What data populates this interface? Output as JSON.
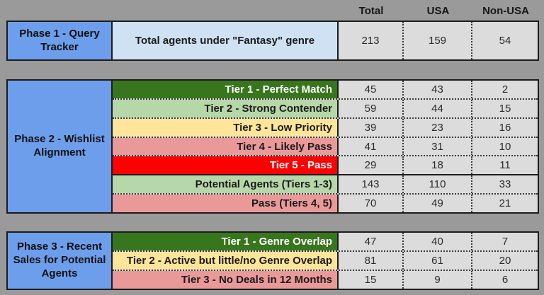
{
  "header": {
    "columns": {
      "total": "Total",
      "usa": "USA",
      "non_usa": "Non-USA"
    }
  },
  "colors": {
    "background": "#9a9a9a",
    "phase_label_blue": "#6d9eeb",
    "light_blue": "#cfe2f3",
    "dark_green": "#38761d",
    "light_green": "#b6d7a8",
    "yellow": "#ffe599",
    "salmon": "#ea9999",
    "red": "#ff0000",
    "number_cell_gray": "#dcdcdc"
  },
  "phase1": {
    "label": "Phase 1 - Query Tracker",
    "rows": [
      {
        "label": "Total agents under \"Fantasy\" genre",
        "total": "213",
        "usa": "159",
        "non_usa": "54"
      }
    ]
  },
  "phase2": {
    "label": "Phase 2 - Wishlist Alignment",
    "rows": [
      {
        "label": "Tier 1 - Perfect Match",
        "total": "45",
        "usa": "43",
        "non_usa": "2"
      },
      {
        "label": "Tier 2 - Strong Contender",
        "total": "59",
        "usa": "44",
        "non_usa": "15"
      },
      {
        "label": "Tier 3 - Low Priority",
        "total": "39",
        "usa": "23",
        "non_usa": "16"
      },
      {
        "label": "Tier 4 - Likely Pass",
        "total": "41",
        "usa": "31",
        "non_usa": "10"
      },
      {
        "label": "Tier 5 - Pass",
        "total": "29",
        "usa": "18",
        "non_usa": "11"
      },
      {
        "label": "Potential Agents (Tiers 1-3)",
        "total": "143",
        "usa": "110",
        "non_usa": "33"
      },
      {
        "label": "Pass (Tiers 4, 5)",
        "total": "70",
        "usa": "49",
        "non_usa": "21"
      }
    ]
  },
  "phase3": {
    "label": "Phase 3 - Recent Sales for Potential Agents",
    "rows": [
      {
        "label": "Tier 1 - Genre Overlap",
        "total": "47",
        "usa": "40",
        "non_usa": "7"
      },
      {
        "label": "Tier 2 - Active but little/no Genre Overlap",
        "total": "81",
        "usa": "61",
        "non_usa": "20"
      },
      {
        "label": "Tier 3 - No Deals in 12 Months",
        "total": "15",
        "usa": "9",
        "non_usa": "6"
      }
    ]
  }
}
